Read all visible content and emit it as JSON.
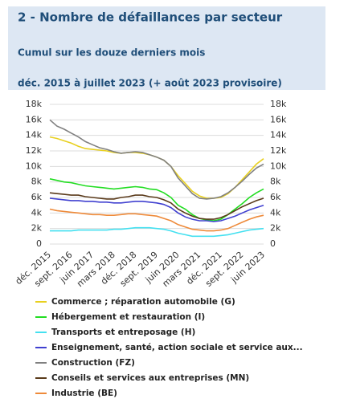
{
  "chart_data": {
    "type": "line",
    "title": "2 - Nombre de défaillances par secteur",
    "subtitle": "Cumul sur les douze derniers mois",
    "period": "déc. 2015 à juillet 2023 (+ août 2023 provisoire)",
    "categories": [
      "déc. 2015",
      null,
      null,
      "sept. 2016",
      null,
      null,
      "juin 2017",
      null,
      null,
      "mars 2018",
      null,
      null,
      "déc. 2018",
      null,
      null,
      "sept. 2019",
      null,
      null,
      "juin 2020",
      null,
      null,
      "mars 2021",
      null,
      null,
      "déc. 2021",
      null,
      null,
      "sept. 2022",
      null,
      null,
      "juin 2023"
    ],
    "ylim": [
      0,
      18000
    ],
    "yticks": [
      {
        "value": 0,
        "label": "0"
      },
      {
        "value": 2000,
        "label": "2k"
      },
      {
        "value": 4000,
        "label": "4k"
      },
      {
        "value": 6000,
        "label": "6k"
      },
      {
        "value": 8000,
        "label": "8k"
      },
      {
        "value": 10000,
        "label": "10k"
      },
      {
        "value": 12000,
        "label": "12k"
      },
      {
        "value": 14000,
        "label": "14k"
      },
      {
        "value": 16000,
        "label": "16k"
      },
      {
        "value": 18000,
        "label": "18k"
      }
    ],
    "grid": true,
    "series": [
      {
        "name": "Commerce ; réparation automobile (G)",
        "color": "#e8d020",
        "values": [
          13800,
          13600,
          13300,
          13000,
          12600,
          12300,
          12200,
          12100,
          12000,
          11800,
          11700,
          11800,
          11800,
          11700,
          11500,
          11200,
          10800,
          10000,
          8800,
          7800,
          6800,
          6200,
          5900,
          5900,
          6000,
          6500,
          7300,
          8300,
          9300,
          10300,
          11000
        ]
      },
      {
        "name": "Hébergement et restauration (I)",
        "color": "#22dd22",
        "values": [
          8400,
          8200,
          8000,
          7900,
          7700,
          7500,
          7400,
          7300,
          7200,
          7100,
          7200,
          7300,
          7400,
          7300,
          7100,
          7000,
          6600,
          6000,
          5000,
          4500,
          3800,
          3300,
          3100,
          3000,
          3200,
          3800,
          4500,
          5200,
          6000,
          6600,
          7100
        ]
      },
      {
        "name": "Transports et entreposage (H)",
        "color": "#44e0f0",
        "values": [
          1700,
          1700,
          1700,
          1700,
          1800,
          1800,
          1800,
          1800,
          1800,
          1900,
          1900,
          2000,
          2100,
          2100,
          2100,
          2000,
          1900,
          1700,
          1400,
          1200,
          1000,
          1000,
          1000,
          1000,
          1100,
          1200,
          1400,
          1600,
          1800,
          1900,
          2000
        ]
      },
      {
        "name": "Enseignement, santé, action sociale et service aux...",
        "color": "#4040d0",
        "values": [
          5900,
          5800,
          5700,
          5600,
          5600,
          5500,
          5500,
          5400,
          5400,
          5300,
          5300,
          5400,
          5500,
          5500,
          5400,
          5300,
          5100,
          4700,
          4000,
          3500,
          3200,
          3000,
          3000,
          2900,
          3000,
          3300,
          3600,
          4000,
          4400,
          4700,
          5000
        ]
      },
      {
        "name": "Construction (FZ)",
        "color": "#808080",
        "values": [
          16000,
          15200,
          14800,
          14300,
          13800,
          13200,
          12800,
          12400,
          12200,
          11900,
          11700,
          11800,
          11900,
          11800,
          11500,
          11200,
          10800,
          10000,
          8500,
          7500,
          6500,
          5900,
          5800,
          5900,
          6100,
          6600,
          7300,
          8100,
          9000,
          9800,
          10300
        ]
      },
      {
        "name": "Conseils et services aux entreprises (MN)",
        "color": "#5a3a1a",
        "values": [
          6600,
          6500,
          6400,
          6300,
          6300,
          6100,
          6000,
          5900,
          5800,
          5800,
          6000,
          6100,
          6300,
          6300,
          6100,
          6000,
          5700,
          5300,
          4500,
          4000,
          3600,
          3300,
          3200,
          3200,
          3400,
          3800,
          4300,
          4800,
          5200,
          5600,
          5900
        ]
      },
      {
        "name": "Industrie (BE)",
        "color": "#ee8a3a",
        "values": [
          4500,
          4300,
          4200,
          4100,
          4000,
          3900,
          3800,
          3800,
          3700,
          3700,
          3800,
          3900,
          3900,
          3800,
          3700,
          3600,
          3300,
          3000,
          2500,
          2200,
          1900,
          1800,
          1700,
          1700,
          1800,
          2000,
          2400,
          2800,
          3200,
          3500,
          3700
        ]
      }
    ]
  }
}
